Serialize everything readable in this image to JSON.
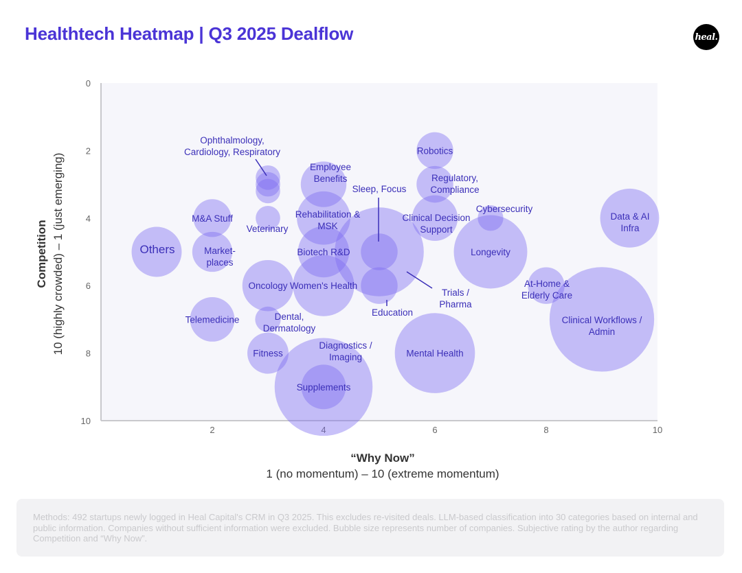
{
  "title": "Healthtech Heatmap | Q3 2025 Dealflow",
  "logo_text": "heal.",
  "y_axis_title_bold": "Competition",
  "y_axis_title_rest": "10 (highly crowded) – 1 (just emerging)",
  "x_axis_title_bold": "“Why Now”",
  "x_axis_title_rest": "1 (no momentum) – 10 (extreme momentum)",
  "methods_note": "Methods: 492 startups newly logged in Heal Capital's CRM in Q3 2025. This excludes re-visited deals. LLM-based classification into 30 categories based on internal and public information. Companies without sufficient information were excluded. Bubble size represents number of companies. Subjective rating by the author regarding Competition and “Why Now”.",
  "colors": {
    "title": "#4a34d6",
    "bubble_fill": "#7b6cf0",
    "bubble_label": "#3b2fb8",
    "axis": "#c8c8cc",
    "tick": "#666666",
    "plot_bg": "#f6f6fb"
  },
  "chart_data": {
    "type": "scatter",
    "bubble": true,
    "xlim": [
      0,
      10
    ],
    "ylim": [
      0,
      10
    ],
    "y_inverted": true,
    "x_ticks": [
      2,
      4,
      6,
      8,
      10
    ],
    "y_ticks": [
      0,
      2,
      4,
      6,
      8,
      10
    ],
    "grid": false,
    "points": [
      {
        "label": "Others",
        "x": 1.0,
        "y": 5.0,
        "r": 0.45
      },
      {
        "label": "M&A Stuff",
        "x": 2.0,
        "y": 4.0,
        "r": 0.34
      },
      {
        "label": "Market-\nplaces",
        "x": 2.0,
        "y": 5.0,
        "r": 0.36
      },
      {
        "label": "Telemedicine",
        "x": 2.0,
        "y": 7.0,
        "r": 0.4
      },
      {
        "label": "Ophthalmology,\nCardiology, Respiratory",
        "x": 3.0,
        "y": 2.8,
        "r": 0.22
      },
      {
        "label": "",
        "x": 3.0,
        "y": 3.0,
        "r": 0.22
      },
      {
        "label": "",
        "x": 3.0,
        "y": 3.2,
        "r": 0.22
      },
      {
        "label": "Veterinary",
        "x": 3.0,
        "y": 4.0,
        "r": 0.22
      },
      {
        "label": "Oncology",
        "x": 3.0,
        "y": 6.0,
        "r": 0.46
      },
      {
        "label": "Dental,\nDermatology",
        "x": 3.0,
        "y": 7.0,
        "r": 0.23
      },
      {
        "label": "Fitness",
        "x": 3.0,
        "y": 8.0,
        "r": 0.37
      },
      {
        "label": "Employee\nBenefits",
        "x": 4.0,
        "y": 3.0,
        "r": 0.41
      },
      {
        "label": "Rehabilitation &\nMSK",
        "x": 4.0,
        "y": 4.0,
        "r": 0.48
      },
      {
        "label": "Biotech R&D",
        "x": 4.0,
        "y": 5.0,
        "r": 0.46
      },
      {
        "label": "Women's Health",
        "x": 4.0,
        "y": 6.0,
        "r": 0.55
      },
      {
        "label": "Diagnostics /\nImaging",
        "x": 4.0,
        "y": 9.0,
        "r": 0.88
      },
      {
        "label": "Supplements",
        "x": 4.0,
        "y": 9.0,
        "r": 0.4
      },
      {
        "label": "Trials /\nPharma",
        "x": 5.0,
        "y": 5.0,
        "r": 0.8
      },
      {
        "label": "Sleep, Focus",
        "x": 5.0,
        "y": 5.0,
        "r": 0.33
      },
      {
        "label": "Education",
        "x": 5.0,
        "y": 6.0,
        "r": 0.33
      },
      {
        "label": "Robotics",
        "x": 6.0,
        "y": 2.0,
        "r": 0.33
      },
      {
        "label": "Regulatory,\nCompliance",
        "x": 6.0,
        "y": 3.0,
        "r": 0.33
      },
      {
        "label": "Clinical Decision\nSupport",
        "x": 6.0,
        "y": 4.0,
        "r": 0.41
      },
      {
        "label": "Mental Health",
        "x": 6.0,
        "y": 8.0,
        "r": 0.72
      },
      {
        "label": "Cybersecurity",
        "x": 7.0,
        "y": 4.0,
        "r": 0.23
      },
      {
        "label": "Longevity",
        "x": 7.0,
        "y": 5.0,
        "r": 0.66
      },
      {
        "label": "At-Home &\nElderly Care",
        "x": 8.0,
        "y": 6.0,
        "r": 0.33
      },
      {
        "label": "Clinical Workflows /\nAdmin",
        "x": 9.0,
        "y": 7.0,
        "r": 0.94
      },
      {
        "label": "Data & AI\nInfra",
        "x": 9.5,
        "y": 4.0,
        "r": 0.53
      }
    ]
  }
}
